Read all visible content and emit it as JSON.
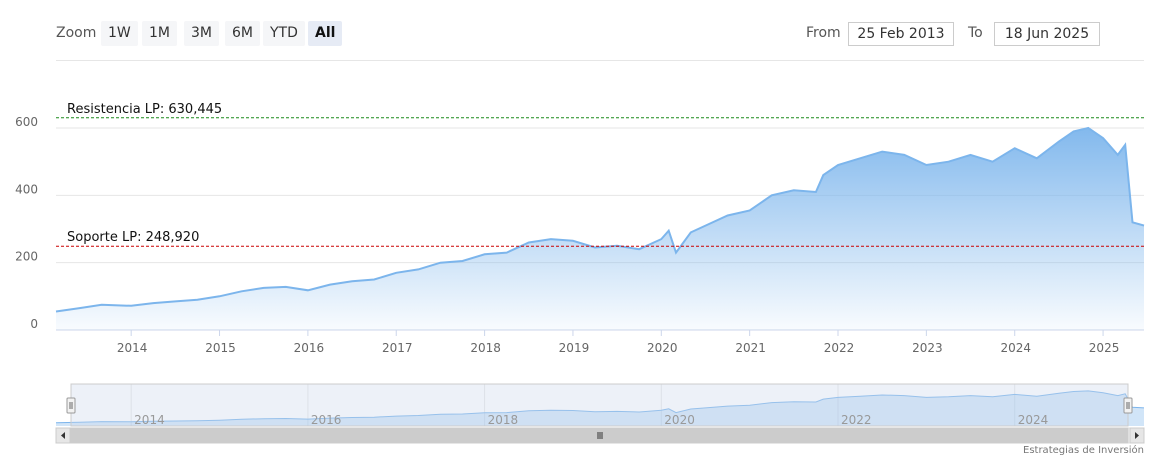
{
  "toolbar": {
    "zoom_label": "Zoom",
    "zoom_buttons": [
      "1W",
      "1M",
      "3M",
      "6M",
      "YTD",
      "All"
    ],
    "active_zoom": "All",
    "from_label": "From",
    "from_value": "25 Feb 2013",
    "to_label": "To",
    "to_value": "18 Jun 2025"
  },
  "credits": "Estrategias de Inversión",
  "colors": {
    "series": "#7cb5ec",
    "resistance": "#1a8a1a",
    "support": "#cc0000",
    "navigator_mask": "#ccd6eb"
  },
  "chart_data": {
    "type": "area",
    "title": "",
    "xlabel": "",
    "ylabel": "",
    "ylim": [
      0,
      650
    ],
    "y_ticks": [
      0,
      200,
      400,
      600
    ],
    "x_tick_labels": [
      "2014",
      "2015",
      "2016",
      "2017",
      "2018",
      "2019",
      "2020",
      "2021",
      "2022",
      "2023",
      "2024",
      "2025"
    ],
    "navigator_tick_labels": [
      "2014",
      "2016",
      "2018",
      "2020",
      "2022",
      "2024"
    ],
    "x_range": [
      "2013-02-25",
      "2025-06-18"
    ],
    "grid": true,
    "legend": "none",
    "annotations": [
      {
        "label": "Resistencia LP: 630,445",
        "y": 630.445,
        "kind": "resistance"
      },
      {
        "label": "Soporte LP: 248,920",
        "y": 248.92,
        "kind": "support"
      }
    ],
    "series": [
      {
        "x": [
          "2013-02-25",
          "2013-06",
          "2013-09",
          "2014-01",
          "2014-04",
          "2014-07",
          "2014-10",
          "2015-01",
          "2015-04",
          "2015-07",
          "2015-10",
          "2016-01",
          "2016-04",
          "2016-07",
          "2016-10",
          "2017-01",
          "2017-04",
          "2017-07",
          "2017-10",
          "2018-01",
          "2018-04",
          "2018-07",
          "2018-10",
          "2019-01",
          "2019-04",
          "2019-07",
          "2019-10",
          "2020-01",
          "2020-02",
          "2020-03",
          "2020-05",
          "2020-07",
          "2020-10",
          "2021-01",
          "2021-04",
          "2021-07",
          "2021-10",
          "2021-11",
          "2022-01",
          "2022-04",
          "2022-07",
          "2022-10",
          "2023-01",
          "2023-04",
          "2023-07",
          "2023-10",
          "2024-01",
          "2024-04",
          "2024-07",
          "2024-09",
          "2024-11",
          "2025-01",
          "2025-03",
          "2025-04",
          "2025-05",
          "2025-06-18"
        ],
        "values": [
          55,
          65,
          75,
          72,
          80,
          85,
          90,
          100,
          115,
          125,
          128,
          118,
          135,
          145,
          150,
          170,
          180,
          200,
          205,
          225,
          230,
          260,
          270,
          265,
          245,
          250,
          240,
          270,
          295,
          230,
          290,
          310,
          340,
          355,
          400,
          415,
          410,
          460,
          490,
          510,
          530,
          520,
          490,
          500,
          520,
          500,
          540,
          510,
          560,
          590,
          600,
          570,
          520,
          550,
          320,
          310
        ]
      }
    ]
  }
}
